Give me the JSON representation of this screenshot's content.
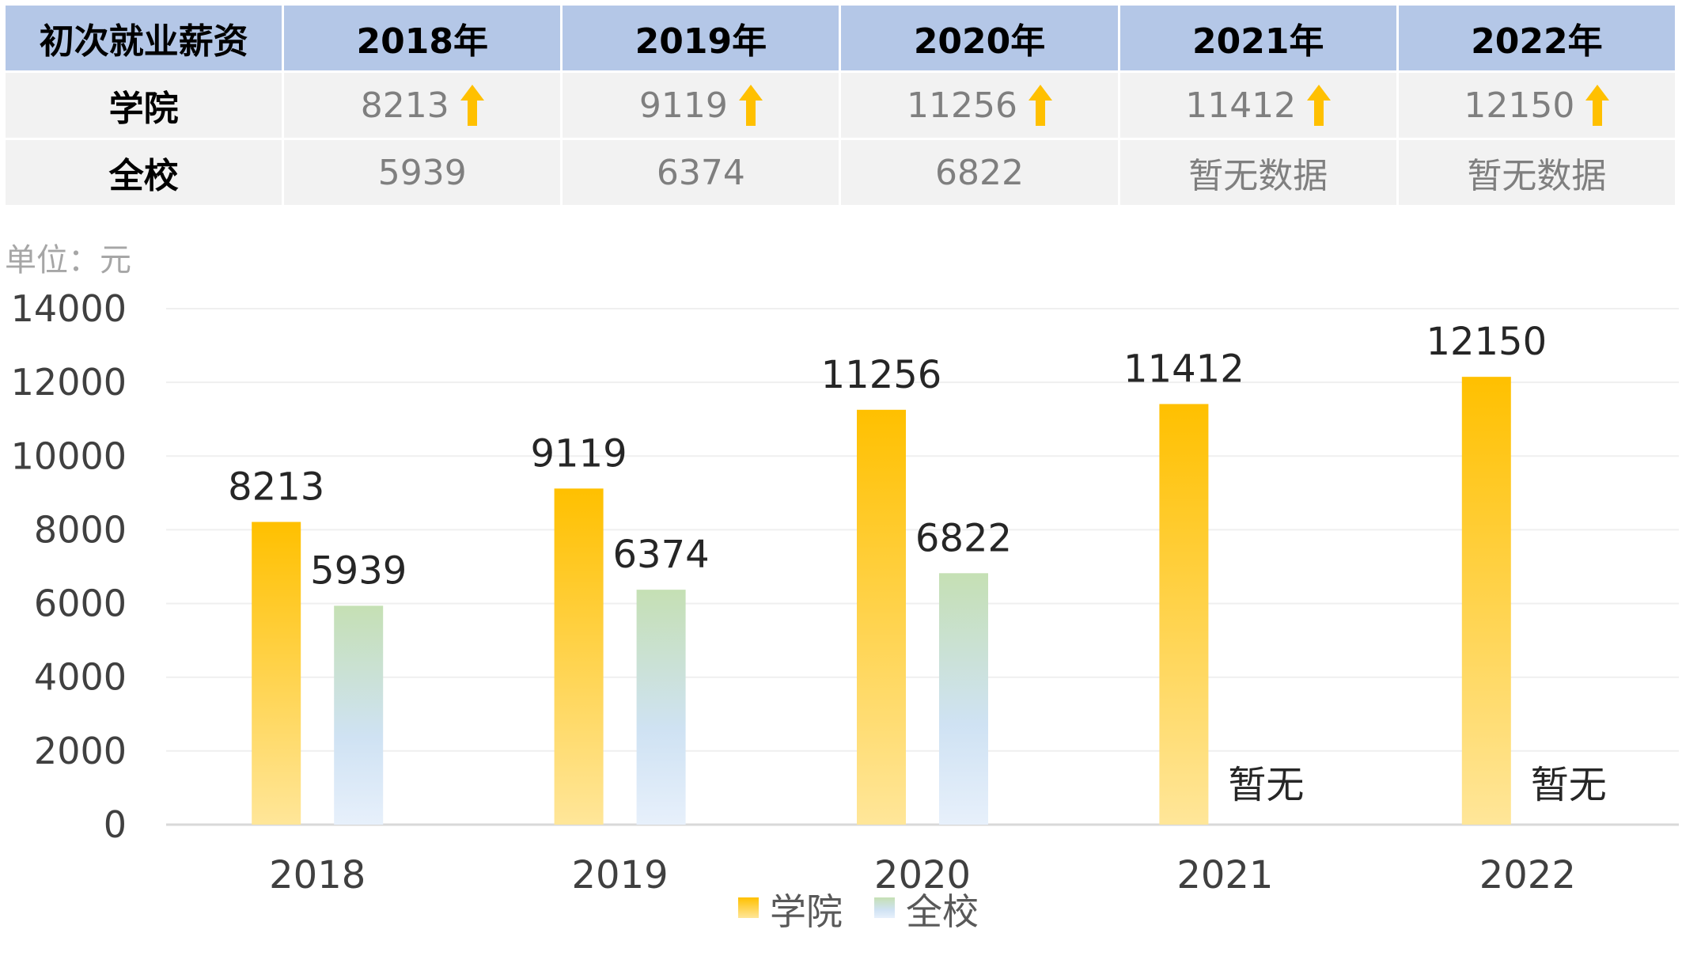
{
  "table": {
    "header": [
      "初次就业薪资",
      "2018年",
      "2019年",
      "2020年",
      "2021年",
      "2022年"
    ],
    "rows": [
      {
        "label": "学院",
        "cells": [
          "8213",
          "9119",
          "11256",
          "11412",
          "12150"
        ],
        "arrow": true
      },
      {
        "label": "全校",
        "cells": [
          "5939",
          "6374",
          "6822",
          "暂无数据",
          "暂无数据"
        ],
        "arrow": false
      }
    ],
    "arrow_color": "#ffc000"
  },
  "chart_data": {
    "type": "bar",
    "unit_label": "单位：元",
    "categories": [
      "2018",
      "2019",
      "2020",
      "2021",
      "2022"
    ],
    "series": [
      {
        "name": "学院",
        "values": [
          8213,
          9119,
          11256,
          11412,
          12150
        ],
        "labels": [
          "8213",
          "9119",
          "11256",
          "11412",
          "12150"
        ],
        "color_top": "#ffc000",
        "color_bottom": "#ffe699"
      },
      {
        "name": "全校",
        "values": [
          5939,
          6374,
          6822,
          null,
          null
        ],
        "labels": [
          "5939",
          "6374",
          "6822",
          "暂无",
          "暂无"
        ],
        "color_top": "#c5e0b4",
        "color_bottom": "#deebf7"
      }
    ],
    "ylim": [
      0,
      14000
    ],
    "yticks": [
      0,
      2000,
      4000,
      6000,
      8000,
      10000,
      12000,
      14000
    ],
    "grid": true,
    "legend_position": "bottom"
  }
}
